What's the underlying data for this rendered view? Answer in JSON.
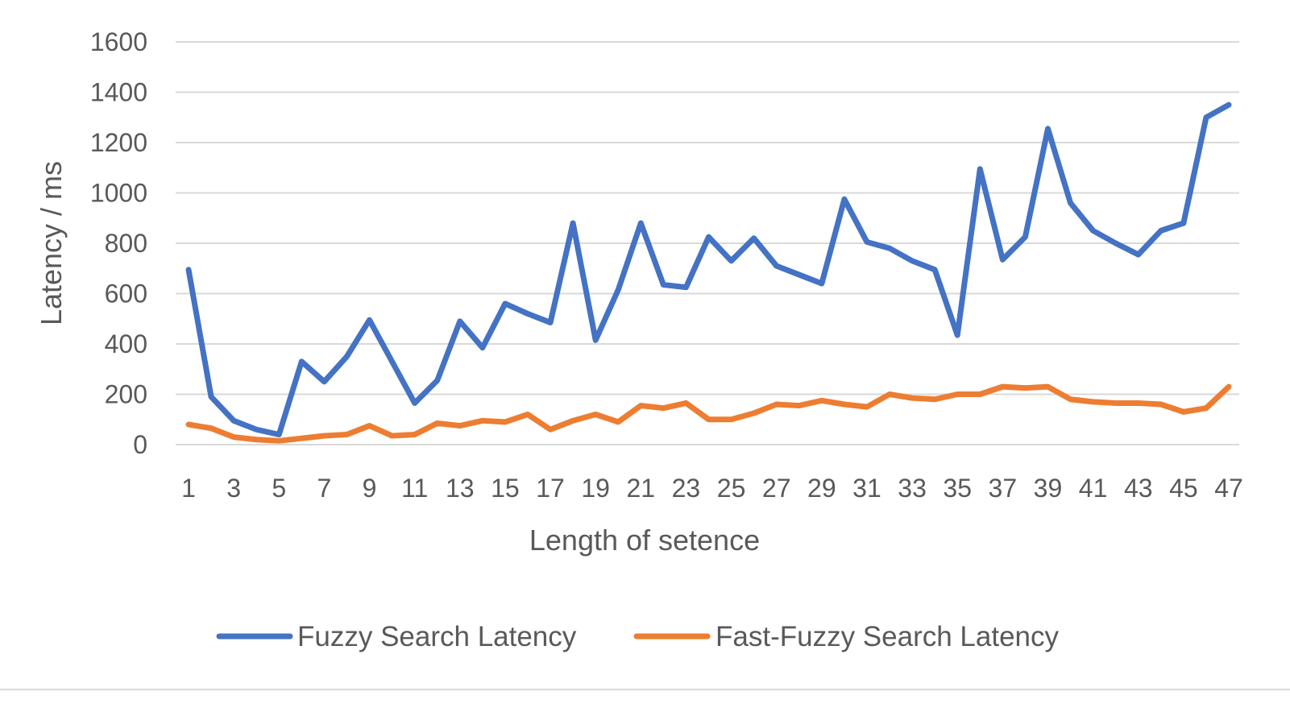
{
  "chart_data": {
    "type": "line",
    "title": "",
    "xlabel": "Length of setence",
    "ylabel": "Latency / ms",
    "ylim": [
      0,
      1600
    ],
    "yticks": [
      0,
      200,
      400,
      600,
      800,
      1000,
      1200,
      1400,
      1600
    ],
    "grid": true,
    "legend_position": "bottom",
    "x": [
      1,
      2,
      3,
      4,
      5,
      6,
      7,
      8,
      9,
      10,
      11,
      12,
      13,
      14,
      15,
      16,
      17,
      18,
      19,
      20,
      21,
      22,
      23,
      24,
      25,
      26,
      27,
      28,
      29,
      30,
      31,
      32,
      33,
      34,
      35,
      36,
      37,
      38,
      39,
      40,
      41,
      42,
      43,
      44,
      45,
      46,
      47
    ],
    "xtick_labels": [
      "1",
      "3",
      "5",
      "7",
      "9",
      "11",
      "13",
      "15",
      "17",
      "19",
      "21",
      "23",
      "25",
      "27",
      "29",
      "31",
      "33",
      "35",
      "37",
      "39",
      "41",
      "43",
      "45",
      "47"
    ],
    "series": [
      {
        "name": "Fuzzy Search Latency",
        "color": "#4472C4",
        "values": [
          695,
          190,
          95,
          60,
          40,
          330,
          250,
          350,
          495,
          330,
          165,
          255,
          490,
          385,
          560,
          520,
          485,
          880,
          415,
          615,
          880,
          635,
          625,
          825,
          730,
          820,
          710,
          675,
          640,
          975,
          805,
          780,
          730,
          695,
          435,
          1095,
          735,
          825,
          1255,
          960,
          850,
          800,
          755,
          850,
          880,
          1300,
          1350
        ]
      },
      {
        "name": "Fast-Fuzzy Search Latency",
        "color": "#ED7D31",
        "values": [
          80,
          65,
          30,
          20,
          15,
          25,
          35,
          40,
          75,
          35,
          40,
          85,
          75,
          95,
          90,
          120,
          60,
          95,
          120,
          90,
          155,
          145,
          165,
          100,
          100,
          125,
          160,
          155,
          175,
          160,
          150,
          200,
          185,
          180,
          200,
          200,
          230,
          225,
          230,
          180,
          170,
          165,
          165,
          160,
          130,
          145,
          230
        ]
      }
    ]
  }
}
